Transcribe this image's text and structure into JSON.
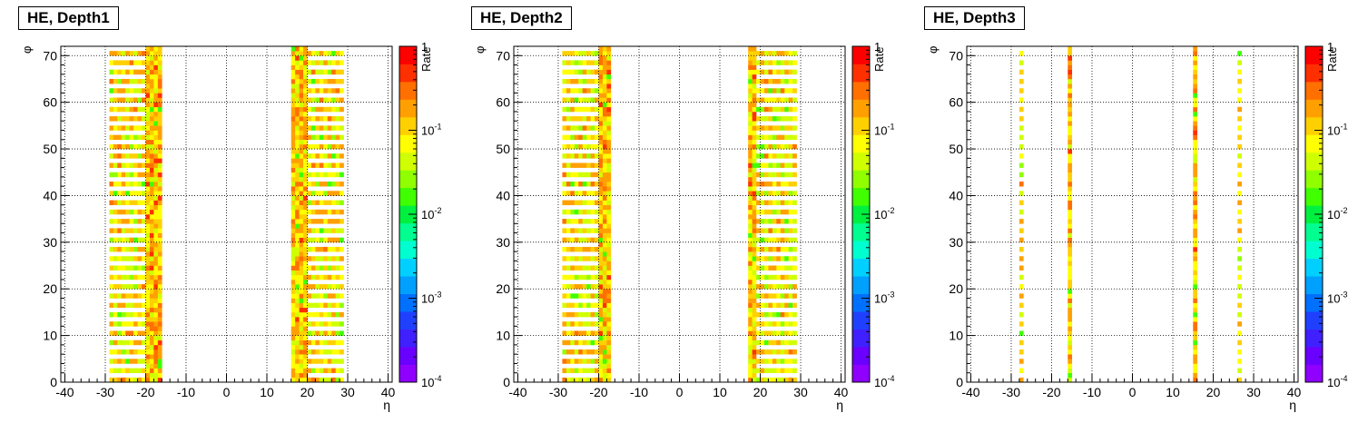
{
  "chart_data": [
    {
      "type": "heatmap",
      "title": "HE, Depth1",
      "xlabel": "η",
      "ylabel": "φ",
      "zlabel": "Rate",
      "xlim": [
        -41,
        41
      ],
      "ylim": [
        0,
        72
      ],
      "xticks": [
        "-40",
        "-30",
        "-20",
        "-10",
        "0",
        "10",
        "20",
        "30",
        "40"
      ],
      "yticks": [
        "0",
        "10",
        "20",
        "30",
        "40",
        "50",
        "60",
        "70"
      ],
      "zlim": [
        0.0001,
        1
      ],
      "zscale": "log",
      "zticks": [
        "1",
        "10",
        "10",
        "10",
        "10"
      ],
      "zticks_exp": [
        "",
        "-1",
        "-2",
        "-3",
        "-4"
      ],
      "grid": true,
      "bands": [
        {
          "eta": [
            -29,
            -20
          ],
          "phi_step": 2,
          "level": 0.09
        },
        {
          "eta": [
            -20,
            -16
          ],
          "phi_step": 1,
          "level": 0.13
        },
        {
          "eta": [
            16,
            20
          ],
          "phi_step": 1,
          "level": 0.13
        },
        {
          "eta": [
            20,
            29
          ],
          "phi_step": 2,
          "level": 0.09
        }
      ]
    },
    {
      "type": "heatmap",
      "title": "HE, Depth2",
      "xlabel": "η",
      "ylabel": "φ",
      "zlabel": "Rate",
      "xlim": [
        -41,
        41
      ],
      "ylim": [
        0,
        72
      ],
      "xticks": [
        "-40",
        "-30",
        "-20",
        "-10",
        "0",
        "10",
        "20",
        "30",
        "40"
      ],
      "yticks": [
        "0",
        "10",
        "20",
        "30",
        "40",
        "50",
        "60",
        "70"
      ],
      "zlim": [
        0.0001,
        1
      ],
      "zscale": "log",
      "zticks": [
        "1",
        "10",
        "10",
        "10",
        "10"
      ],
      "zticks_exp": [
        "",
        "-1",
        "-2",
        "-3",
        "-4"
      ],
      "grid": true,
      "bands": [
        {
          "eta": [
            -29,
            -20
          ],
          "phi_step": 2,
          "level": 0.09
        },
        {
          "eta": [
            -20,
            -17
          ],
          "phi_step": 1,
          "level": 0.12
        },
        {
          "eta": [
            17,
            19
          ],
          "phi_step": 1,
          "level": 0.12
        },
        {
          "eta": [
            19,
            29
          ],
          "phi_step": 2,
          "level": 0.09
        }
      ]
    },
    {
      "type": "heatmap",
      "title": "HE, Depth3",
      "xlabel": "η",
      "ylabel": "φ",
      "zlabel": "Rate",
      "xlim": [
        -41,
        41
      ],
      "ylim": [
        0,
        72
      ],
      "xticks": [
        "-40",
        "-30",
        "-20",
        "-10",
        "0",
        "10",
        "20",
        "30",
        "40"
      ],
      "yticks": [
        "0",
        "10",
        "20",
        "30",
        "40",
        "50",
        "60",
        "70"
      ],
      "zlim": [
        0.0001,
        1
      ],
      "zscale": "log",
      "zticks": [
        "1",
        "10",
        "10",
        "10",
        "10"
      ],
      "zticks_exp": [
        "",
        "-1",
        "-2",
        "-3",
        "-4"
      ],
      "grid": true,
      "bands": [
        {
          "eta": [
            -28,
            -27
          ],
          "phi_step": 2,
          "level": 0.09
        },
        {
          "eta": [
            -16,
            -15
          ],
          "phi_step": 1,
          "level": 0.13
        },
        {
          "eta": [
            15,
            16
          ],
          "phi_step": 1,
          "level": 0.13
        },
        {
          "eta": [
            26,
            27
          ],
          "phi_step": 2,
          "level": 0.09
        }
      ]
    }
  ],
  "palette": [
    "#8f00ff",
    "#6a00ff",
    "#4020ff",
    "#2040ff",
    "#0070ff",
    "#00a0ff",
    "#00d0ff",
    "#00ffd0",
    "#00ff90",
    "#00f040",
    "#40ff00",
    "#90ff00",
    "#d0ff00",
    "#ffff00",
    "#ffd000",
    "#ffa000",
    "#ff7000",
    "#ff3000",
    "#ff0000"
  ]
}
